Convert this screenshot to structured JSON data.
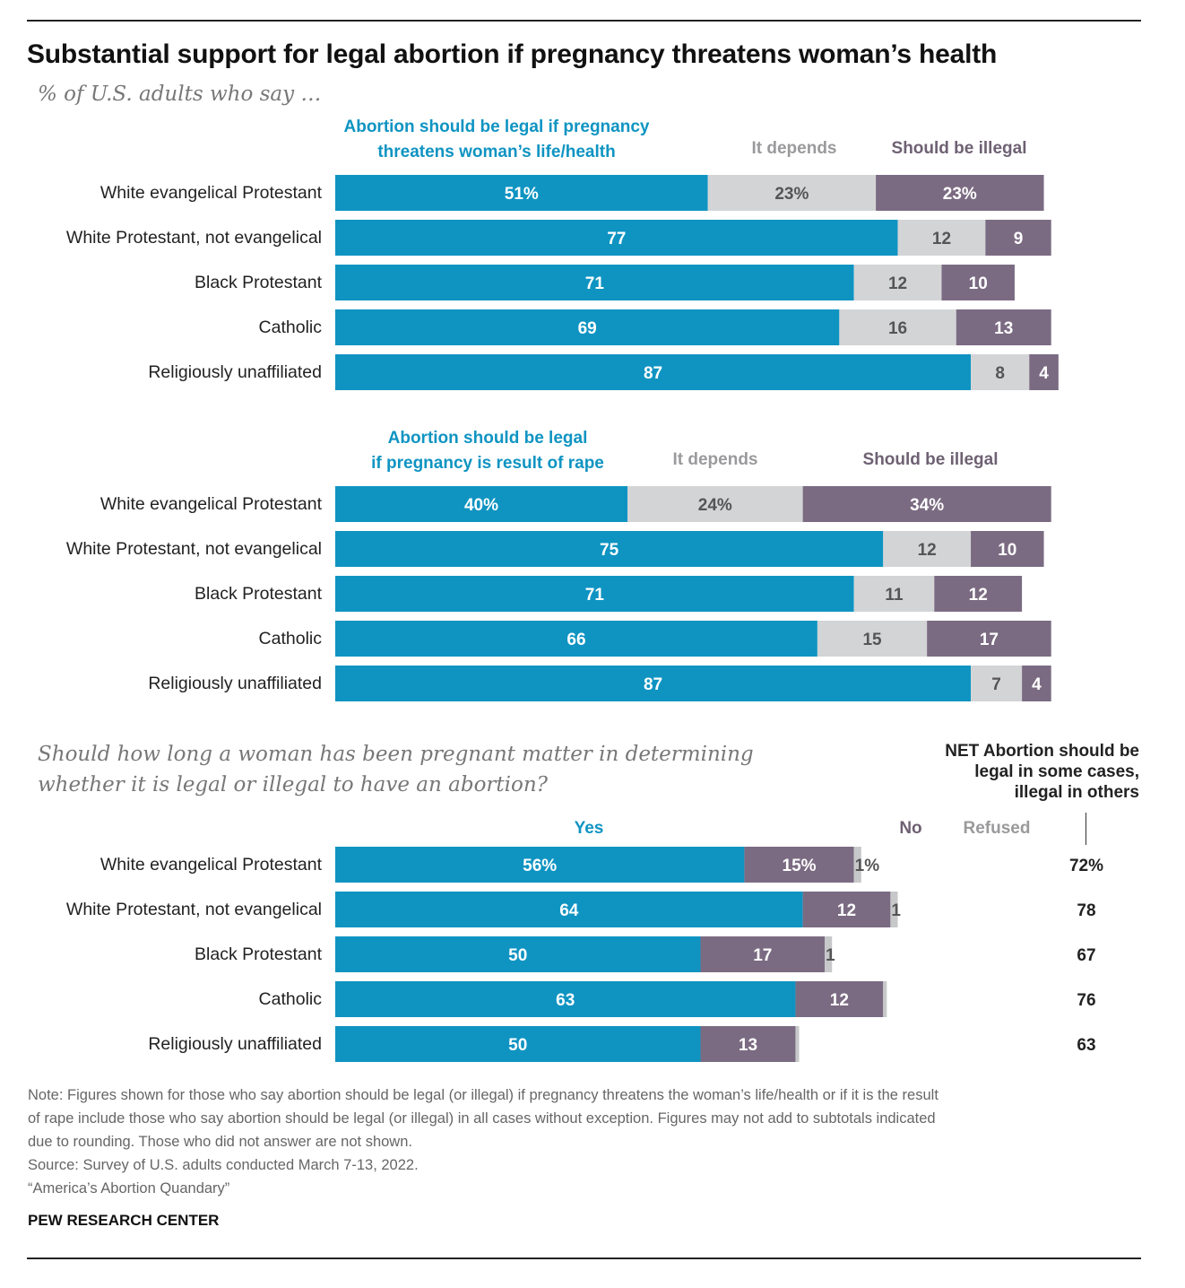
{
  "title": "Substantial support for legal abortion if pregnancy threatens woman’s health",
  "subtitle": "% of U.S. adults who say …",
  "colors": {
    "legal": "#0f94c2",
    "depends": "#d3d4d6",
    "illegal": "#7b6b82",
    "refused": "#c7c8ca",
    "net": "#222222"
  },
  "chart_data": [
    {
      "type": "bar",
      "orientation": "horizontal",
      "stacked": true,
      "categories": [
        "White evangelical Protestant",
        "White Protestant, not evangelical",
        "Black Protestant",
        "Catholic",
        "Religiously unaffiliated"
      ],
      "series": [
        {
          "name": "Abortion should be legal if pregnancy threatens woman’s life/health",
          "values": [
            51,
            77,
            71,
            69,
            87
          ]
        },
        {
          "name": "It depends",
          "values": [
            23,
            12,
            12,
            16,
            8
          ]
        },
        {
          "name": "Should be illegal",
          "values": [
            23,
            9,
            10,
            13,
            4
          ]
        }
      ],
      "header_lines": [
        [
          "Abortion should be legal if pregnancy",
          "threatens woman’s life/health"
        ],
        [
          "It depends"
        ],
        [
          "Should be illegal"
        ]
      ],
      "first_row_suffix": "%",
      "xlim": [
        0,
        100
      ]
    },
    {
      "type": "bar",
      "orientation": "horizontal",
      "stacked": true,
      "categories": [
        "White evangelical Protestant",
        "White Protestant, not evangelical",
        "Black Protestant",
        "Catholic",
        "Religiously unaffiliated"
      ],
      "series": [
        {
          "name": "Abortion should be legal if pregnancy is result of rape",
          "values": [
            40,
            75,
            71,
            66,
            87
          ]
        },
        {
          "name": "It depends",
          "values": [
            24,
            12,
            11,
            15,
            7
          ]
        },
        {
          "name": "Should be illegal",
          "values": [
            34,
            10,
            12,
            17,
            4
          ]
        }
      ],
      "header_lines": [
        [
          "Abortion should be legal",
          "if pregnancy is result of rape"
        ],
        [
          "It depends"
        ],
        [
          "Should be illegal"
        ]
      ],
      "first_row_suffix": "%",
      "xlim": [
        0,
        100
      ]
    },
    {
      "type": "bar",
      "orientation": "horizontal",
      "stacked": true,
      "question": [
        "Should how long a woman has been pregnant matter in determining",
        "whether it is legal or illegal to have an abortion?"
      ],
      "categories": [
        "White evangelical Protestant",
        "White Protestant, not evangelical",
        "Black Protestant",
        "Catholic",
        "Religiously unaffiliated"
      ],
      "series": [
        {
          "name": "Yes",
          "values": [
            56,
            64,
            50,
            63,
            50
          ]
        },
        {
          "name": "No",
          "values": [
            15,
            12,
            17,
            12,
            13
          ]
        },
        {
          "name": "Refused",
          "values": [
            1,
            1,
            1,
            0.5,
            0.5
          ]
        }
      ],
      "refused_labels": [
        "1%",
        "1",
        "1",
        "",
        ""
      ],
      "net": {
        "header": [
          "NET Abortion should be",
          "legal in some cases,",
          "illegal in others"
        ],
        "values": [
          "72%",
          "78",
          "67",
          "76",
          "63"
        ]
      },
      "first_row_suffix": "%",
      "xlim": [
        0,
        100
      ]
    }
  ],
  "notes": [
    "Note: Figures shown for those who say abortion should be legal (or illegal) if pregnancy threatens the woman’s life/health or if it is the result",
    "of rape include those who say abortion should be legal (or illegal) in all cases without exception. Figures may not add to subtotals indicated",
    "due to rounding. Those who did not answer are not shown.",
    "Source: Survey of U.S. adults conducted March 7-13, 2022.",
    "“America’s Abortion Quandary”"
  ],
  "brand": "PEW RESEARCH CENTER"
}
